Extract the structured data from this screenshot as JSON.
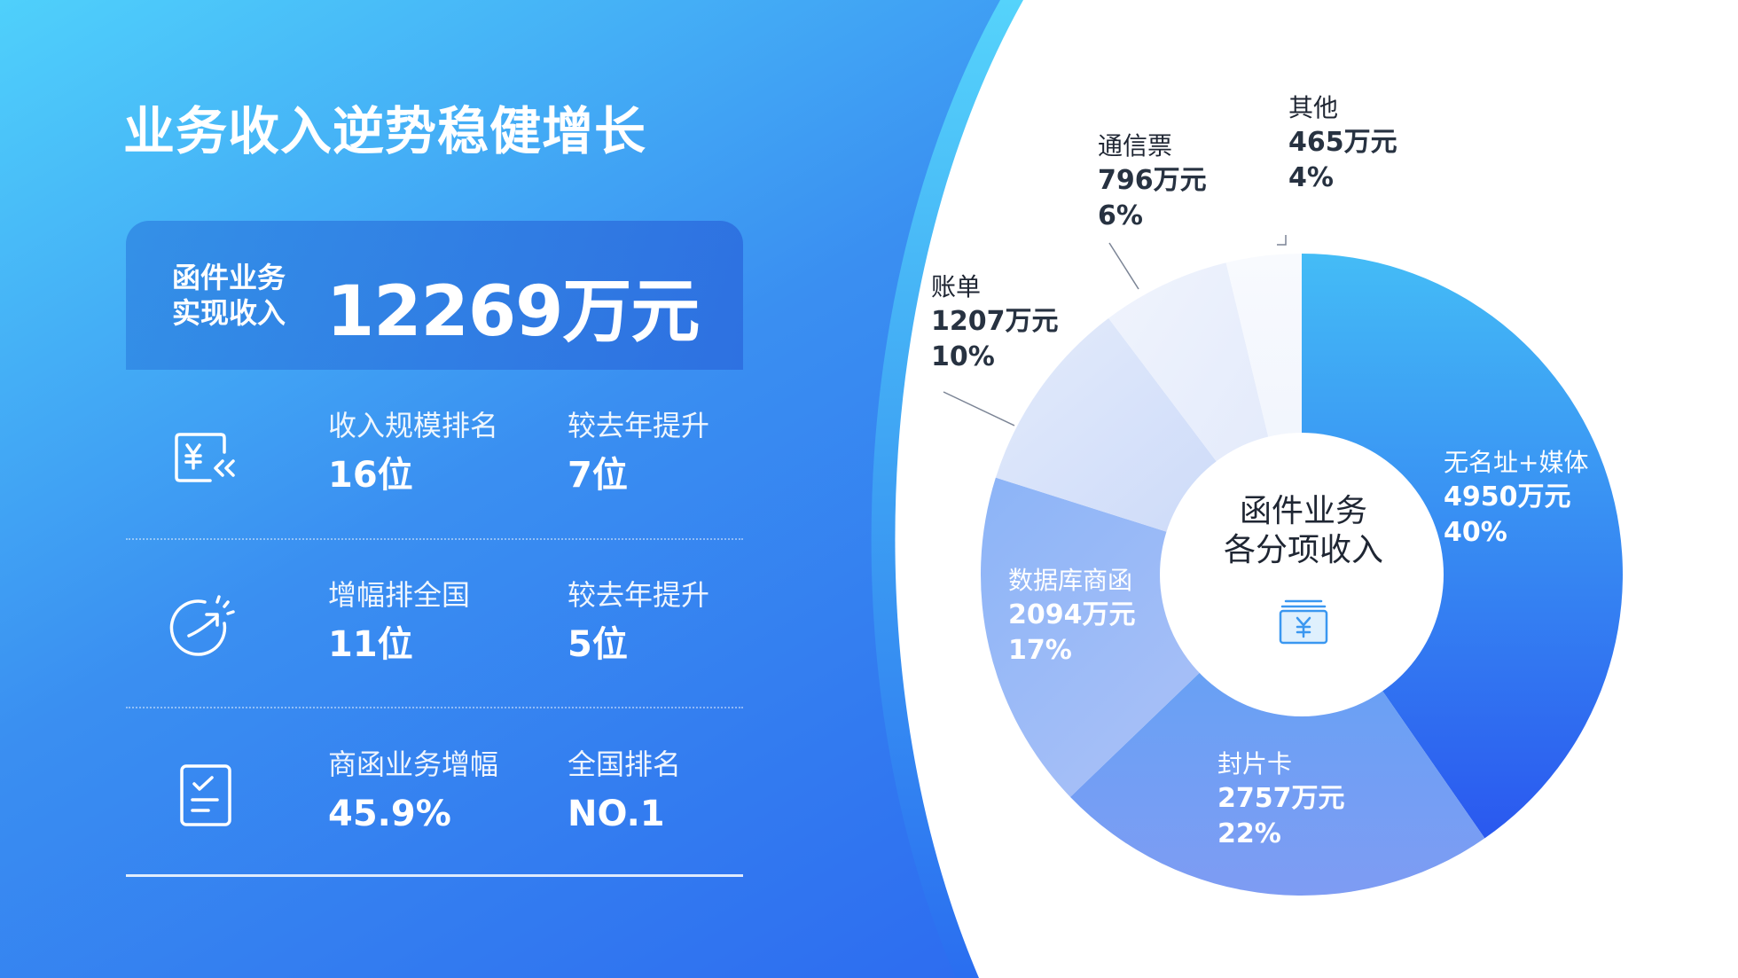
{
  "page": {
    "title": "业务收入逆势稳健增长"
  },
  "hero": {
    "label": "函件业务实现收入",
    "value": "12269万元"
  },
  "stats": [
    {
      "icon": "yuan-receipt-icon",
      "a": {
        "label": "收入规模排名",
        "value": "16位"
      },
      "b": {
        "label": "较去年提升",
        "value": "7位"
      }
    },
    {
      "icon": "growth-arrow-icon",
      "a": {
        "label": "增幅排全国",
        "value": "11位"
      },
      "b": {
        "label": "较去年提升",
        "value": "5位"
      }
    },
    {
      "icon": "checklist-icon",
      "a": {
        "label": "商函业务增幅",
        "value": "45.9%"
      },
      "b": {
        "label": "全国排名",
        "value": "NO.1"
      }
    }
  ],
  "chart_data": {
    "type": "pie",
    "variant": "donut",
    "center_label": "函件业务各分项收入",
    "center_icon": "yuan-box-icon",
    "unit": "万元",
    "slices": [
      {
        "name": "无名址+媒体",
        "value": 4950,
        "value_label": "4950万元",
        "percent": 40,
        "percent_label": "40%"
      },
      {
        "name": "封片卡",
        "value": 2757,
        "value_label": "2757万元",
        "percent": 22,
        "percent_label": "22%"
      },
      {
        "name": "数据库商函",
        "value": 2094,
        "value_label": "2094万元",
        "percent": 17,
        "percent_label": "17%"
      },
      {
        "name": "账单",
        "value": 1207,
        "value_label": "1207万元",
        "percent": 10,
        "percent_label": "10%"
      },
      {
        "name": "通信票",
        "value": 796,
        "value_label": "796万元",
        "percent": 6,
        "percent_label": "6%"
      },
      {
        "name": "其他",
        "value": 465,
        "value_label": "465万元",
        "percent": 4,
        "percent_label": "4%"
      }
    ]
  },
  "colors": {
    "background_start": "#4fd0fb",
    "background_mid": "#3a8ff1",
    "background_end": "#2659ef",
    "text_dark": "#273241"
  }
}
